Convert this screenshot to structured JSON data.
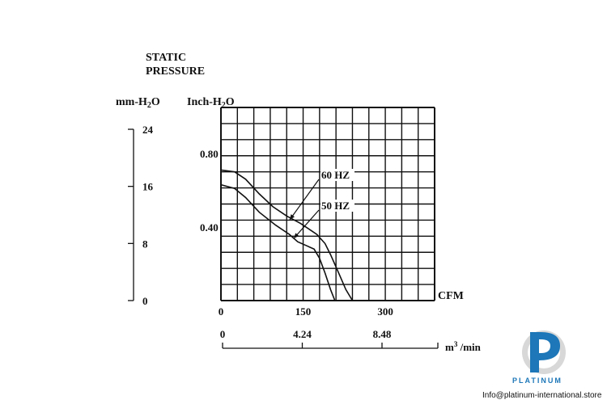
{
  "chart_data": {
    "type": "line",
    "title": "STATIC\nPRESSURE",
    "ylabel_left": "mm-H2O",
    "ylabel_right": "Inch-H2O",
    "xlabel": "CFM",
    "xlabel_metric": "m3 /min",
    "xlim": [
      0,
      390
    ],
    "ylim": [
      0,
      1.05
    ],
    "x_ticks": [
      0,
      150,
      300
    ],
    "y_ticks": [
      0.4,
      0.8
    ],
    "mm_ticks": [
      0,
      8,
      16,
      24
    ],
    "metric_ticks": [
      "0",
      "4.24",
      "8.48"
    ],
    "grid": true,
    "series": [
      {
        "name": "60 HZ",
        "points": [
          [
            0,
            0.71
          ],
          [
            25,
            0.7
          ],
          [
            45,
            0.66
          ],
          [
            70,
            0.58
          ],
          [
            95,
            0.51
          ],
          [
            120,
            0.46
          ],
          [
            145,
            0.42
          ],
          [
            160,
            0.39
          ],
          [
            175,
            0.36
          ],
          [
            190,
            0.31
          ],
          [
            200,
            0.25
          ],
          [
            215,
            0.15
          ],
          [
            228,
            0.06
          ],
          [
            240,
            0
          ]
        ]
      },
      {
        "name": "50 HZ",
        "points": [
          [
            0,
            0.63
          ],
          [
            25,
            0.61
          ],
          [
            45,
            0.56
          ],
          [
            70,
            0.48
          ],
          [
            100,
            0.41
          ],
          [
            125,
            0.36
          ],
          [
            140,
            0.32
          ],
          [
            155,
            0.3
          ],
          [
            170,
            0.28
          ],
          [
            180,
            0.23
          ],
          [
            190,
            0.15
          ],
          [
            200,
            0.06
          ],
          [
            208,
            0
          ]
        ]
      }
    ]
  },
  "brand": {
    "name": "PLATINUM",
    "contact": "Info@platinum-international.store",
    "color": "#1d77b8"
  }
}
